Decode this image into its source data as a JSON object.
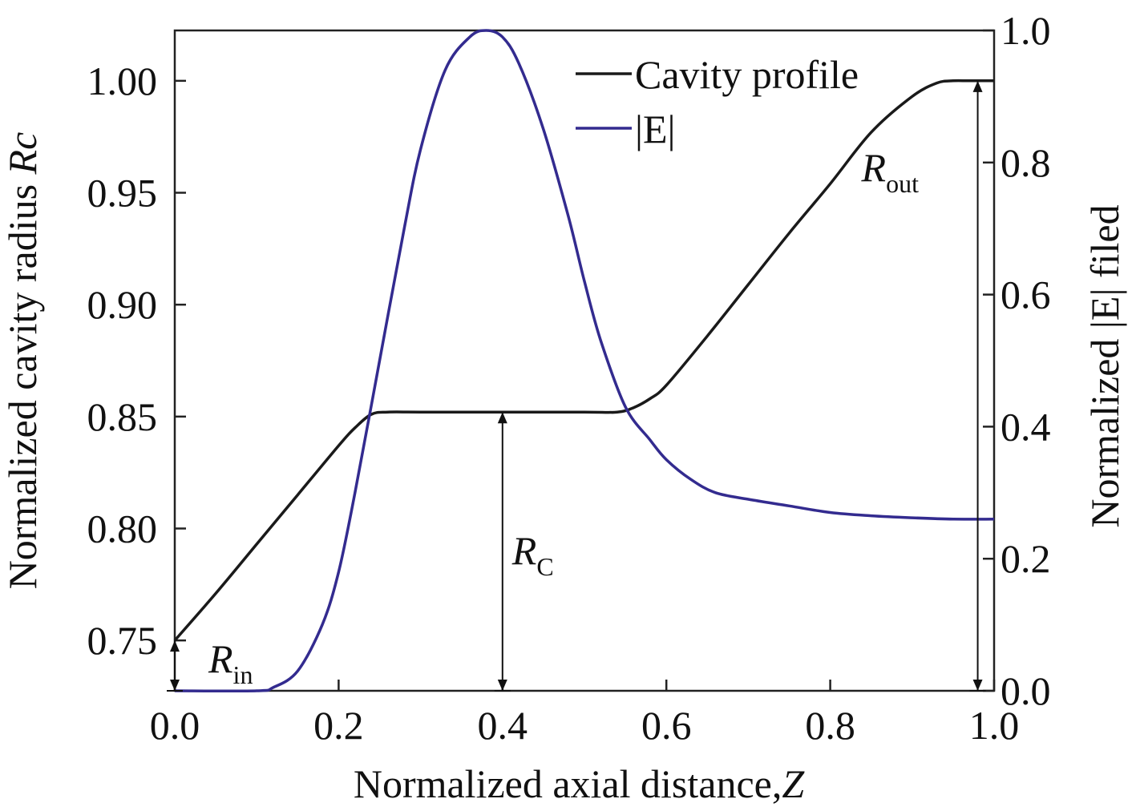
{
  "chart_data": {
    "type": "line",
    "xlabel": "Normalized axial distance,",
    "xlabel_var": "Z",
    "ylabel_left": "Normalized cavity radius ",
    "ylabel_left_var": "Rc",
    "ylabel_right": "Normalized |E| filed",
    "xlim": [
      0.0,
      1.0
    ],
    "ylim_left": [
      0.7275,
      1.0225
    ],
    "ylim_right": [
      0.0,
      1.0
    ],
    "x_ticks": [
      "0.0",
      "0.2",
      "0.4",
      "0.6",
      "0.8",
      "1.0"
    ],
    "y_left_ticks": [
      "0.75",
      "0.80",
      "0.85",
      "0.90",
      "0.95",
      "1.00"
    ],
    "y_right_ticks": [
      "0.0",
      "0.2",
      "0.4",
      "0.6",
      "0.8",
      "1.0"
    ],
    "legend_position": "top-right",
    "series": [
      {
        "name": "Cavity profile",
        "axis": "left",
        "color": "#1a1a1a",
        "x": [
          0.0,
          0.05,
          0.1,
          0.15,
          0.2,
          0.22,
          0.24,
          0.26,
          0.3,
          0.4,
          0.5,
          0.54,
          0.56,
          0.58,
          0.6,
          0.65,
          0.7,
          0.75,
          0.8,
          0.85,
          0.9,
          0.93,
          0.95,
          0.97,
          1.0
        ],
        "values": [
          0.75,
          0.771,
          0.793,
          0.815,
          0.837,
          0.845,
          0.851,
          0.852,
          0.852,
          0.852,
          0.852,
          0.852,
          0.854,
          0.858,
          0.864,
          0.886,
          0.909,
          0.932,
          0.954,
          0.977,
          0.993,
          0.999,
          1.0,
          1.0,
          1.0
        ]
      },
      {
        "name": "|E|",
        "axis": "right",
        "color": "#332b8f",
        "x": [
          0.0,
          0.1,
          0.12,
          0.15,
          0.18,
          0.2,
          0.22,
          0.25,
          0.28,
          0.3,
          0.33,
          0.36,
          0.38,
          0.4,
          0.42,
          0.45,
          0.48,
          0.5,
          0.52,
          0.55,
          0.58,
          0.6,
          0.63,
          0.66,
          0.7,
          0.75,
          0.8,
          0.85,
          0.9,
          0.95,
          1.0
        ],
        "values": [
          0.0,
          0.0,
          0.005,
          0.03,
          0.1,
          0.18,
          0.3,
          0.5,
          0.7,
          0.82,
          0.94,
          0.99,
          1.0,
          0.99,
          0.95,
          0.85,
          0.72,
          0.62,
          0.53,
          0.43,
          0.38,
          0.35,
          0.32,
          0.3,
          0.29,
          0.28,
          0.27,
          0.265,
          0.262,
          0.26,
          0.26
        ]
      }
    ],
    "annotations": [
      {
        "main": "R",
        "sub": "in",
        "x": 0.0,
        "y_from": 0.7275,
        "y_to": 0.75
      },
      {
        "main": "R",
        "sub": "C",
        "x": 0.4,
        "y_from": 0.7275,
        "y_to": 0.852
      },
      {
        "main": "R",
        "sub": "out",
        "x": 0.98,
        "y_from": 0.7275,
        "y_to": 1.0
      }
    ]
  }
}
